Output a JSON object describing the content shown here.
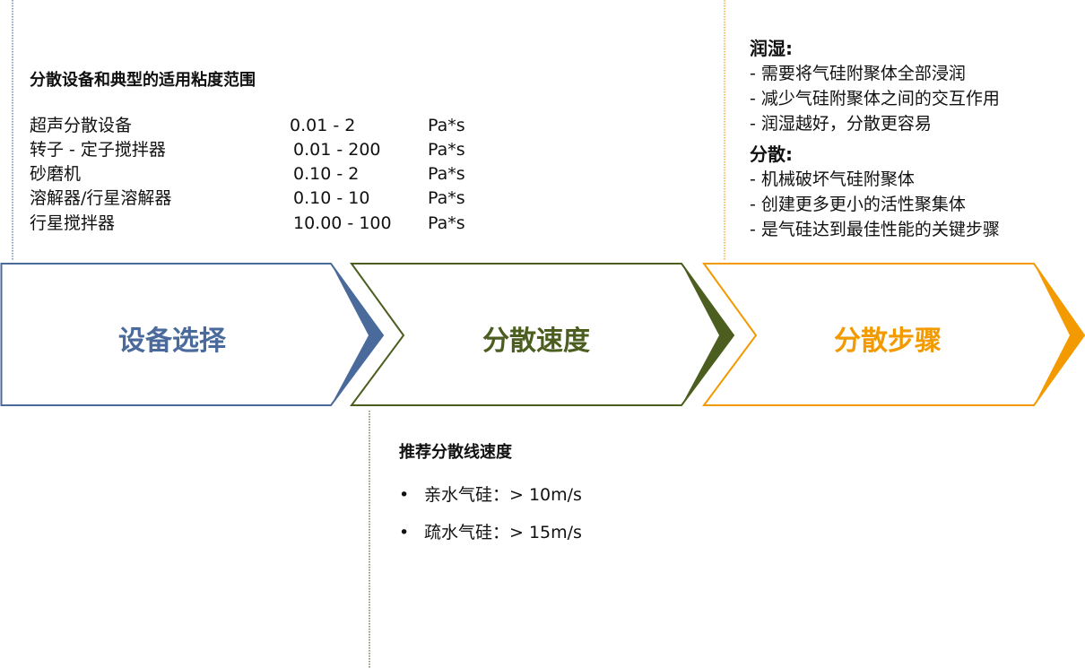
{
  "colors": {
    "blue": "#4a6a9c",
    "green": "#4b5e1f",
    "orange": "#f29a00"
  },
  "steps": [
    {
      "label": "设备选择"
    },
    {
      "label": "分散速度"
    },
    {
      "label": "分散步骤"
    }
  ],
  "equipment": {
    "title": "分散设备和典型的适用粘度范围",
    "rows": [
      {
        "name": "超声分散设备",
        "range": "0.01 -  2",
        "unit": "Pa*s"
      },
      {
        "name": "转子 - 定子搅拌器",
        "range": "0.01 -  200",
        "unit": "Pa*s"
      },
      {
        "name": "砂磨机",
        "range": "0.10 -  2",
        "unit": "Pa*s"
      },
      {
        "name": "溶解器/行星溶解器",
        "range": "0.10 -  10",
        "unit": "Pa*s"
      },
      {
        "name": "行星搅拌器",
        "range": "10.00 - 100",
        "unit": "Pa*s"
      }
    ]
  },
  "speed": {
    "title": "推荐分散线速度",
    "items": [
      "亲水气硅：> 10m/s",
      "疏水气硅：> 15m/s"
    ],
    "bullet": "•"
  },
  "process": {
    "wetting_title": "润湿:",
    "wetting": [
      "- 需要将气硅附聚体全部浸润",
      "- 减少气硅附聚体之间的交互作用",
      "- 润湿越好，分散更容易"
    ],
    "dispersion_title": "分散:",
    "dispersion": [
      "- 机械破坏气硅附聚体",
      "- 创建更多更小的活性聚集体",
      "- 是气硅达到最佳性能的关键步骤"
    ]
  }
}
